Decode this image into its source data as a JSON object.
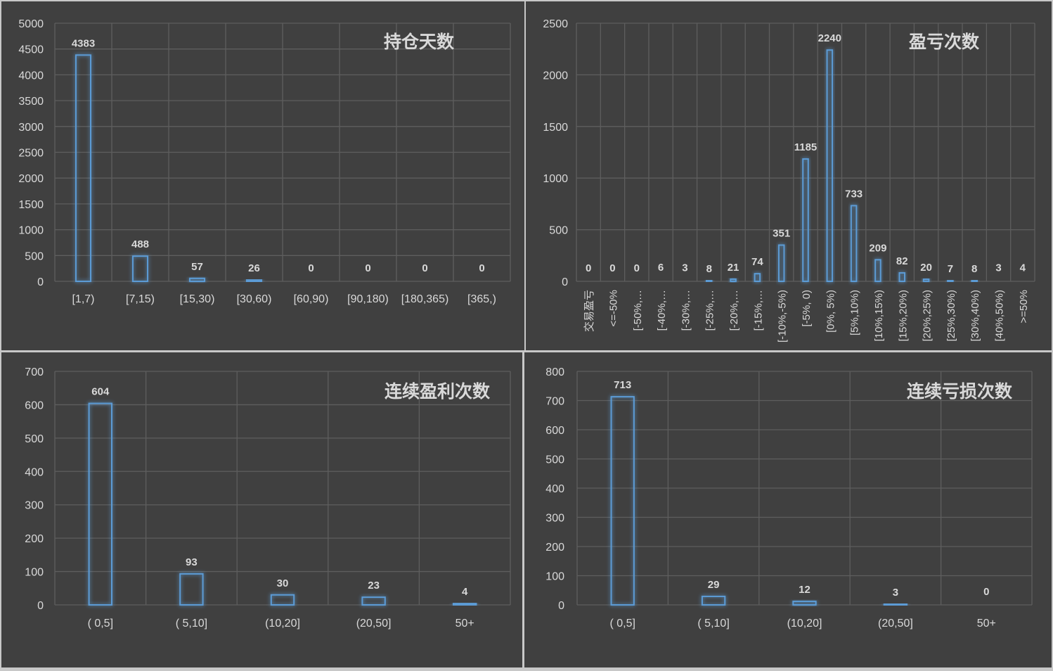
{
  "colors": {
    "panel_bg": "#404040",
    "grid": "#5e5e5e",
    "axis_text": "#d9d9d9",
    "bar_stroke": "#5b9bd5",
    "bar_glow": "#2e75b6"
  },
  "chart_data": [
    {
      "type": "bar",
      "title": "持仓天数",
      "categories": [
        "[1,7)",
        "[7,15)",
        "[15,30)",
        "[30,60)",
        "[60,90)",
        "[90,180)",
        "[180,365)",
        "[365,)"
      ],
      "values": [
        4383,
        488,
        57,
        26,
        0,
        0,
        0,
        0
      ],
      "yticks": [
        0,
        500,
        1000,
        1500,
        2000,
        2500,
        3000,
        3500,
        4000,
        4500,
        5000
      ],
      "ylim": [
        0,
        5000
      ],
      "grid": true,
      "legend": "none"
    },
    {
      "type": "bar",
      "title": "盈亏次数",
      "categories": [
        "交易盈亏",
        "<=-50%",
        "[-50%,…",
        "[-40%,…",
        "[-30%,…",
        "[-25%,…",
        "[-20%,…",
        "[-15%,…",
        "[-10%,-5%)",
        "[-5%, 0)",
        "[0%, 5%)",
        "[5%,10%)",
        "[10%,15%)",
        "[15%,20%)",
        "[20%,25%)",
        "[25%,30%)",
        "[30%,40%)",
        "[40%,50%)",
        ">=50%"
      ],
      "values": [
        0,
        0,
        0,
        6,
        3,
        8,
        21,
        74,
        351,
        1185,
        2240,
        733,
        209,
        82,
        20,
        7,
        8,
        3,
        4
      ],
      "yticks": [
        0,
        500,
        1000,
        1500,
        2000,
        2500
      ],
      "ylim": [
        0,
        2500
      ],
      "grid": true,
      "legend": "none"
    },
    {
      "type": "bar",
      "title": "连续盈利次数",
      "categories": [
        "( 0,5]",
        "( 5,10]",
        "(10,20]",
        "(20,50]",
        "50+"
      ],
      "values": [
        604,
        93,
        30,
        23,
        4
      ],
      "yticks": [
        0,
        100,
        200,
        300,
        400,
        500,
        600,
        700
      ],
      "ylim": [
        0,
        700
      ],
      "grid": true,
      "legend": "none"
    },
    {
      "type": "bar",
      "title": "连续亏损次数",
      "categories": [
        "( 0,5]",
        "( 5,10]",
        "(10,20]",
        "(20,50]",
        "50+"
      ],
      "values": [
        713,
        29,
        12,
        3,
        0
      ],
      "yticks": [
        0,
        100,
        200,
        300,
        400,
        500,
        600,
        700,
        800
      ],
      "ylim": [
        0,
        800
      ],
      "grid": true,
      "legend": "none"
    }
  ]
}
